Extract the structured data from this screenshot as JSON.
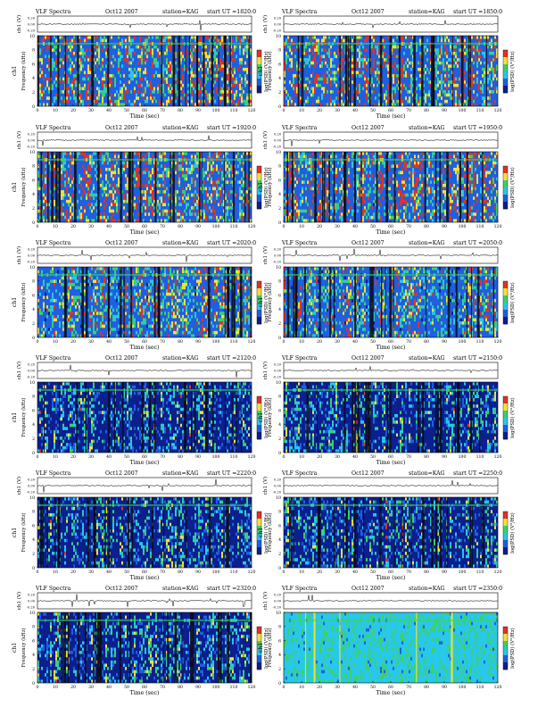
{
  "figure": {
    "common": {
      "plot_label": "VLF Spectra",
      "date": "Oct12 2007",
      "station_text": "station=KAG",
      "start_text": "start UT =",
      "amp_label": "ch1 (V)",
      "spec_channel_label": "ch1",
      "spec_ylabel": "Frequency (kHz)",
      "xlabel": "Time (sec)",
      "colorbar_label": "log(PSD) (V²/Hz)"
    },
    "colors": {
      "deep_blue": "#0b1f8f",
      "blue": "#1f5fe0",
      "cyan": "#28c8e8",
      "green": "#3ed06a",
      "yellow": "#f2e23a",
      "red": "#e23224",
      "sweep_dark": "#0a0a18"
    }
  },
  "chart_data": [
    {
      "type": "heatmap",
      "start_ut": "1820:0",
      "xlim": [
        0,
        120
      ],
      "ylim": [
        0,
        10
      ],
      "amp_ylim": [
        -0.2,
        0.2
      ],
      "xticks": [
        0,
        10,
        20,
        30,
        40,
        50,
        60,
        70,
        80,
        90,
        100,
        110,
        120
      ],
      "yticks": [
        0,
        2,
        4,
        6,
        8,
        10
      ],
      "amp_ticks": [
        "0.20",
        "0.00",
        "-0.20"
      ]
    },
    {
      "type": "heatmap",
      "start_ut": "1850:0",
      "xlim": [
        0,
        120
      ],
      "ylim": [
        0,
        10
      ],
      "amp_ylim": [
        -0.2,
        0.2
      ],
      "xticks": [
        0,
        10,
        20,
        30,
        40,
        50,
        60,
        70,
        80,
        90,
        100,
        110,
        120
      ],
      "yticks": [
        0,
        2,
        4,
        6,
        8,
        10
      ],
      "amp_ticks": [
        "0.20",
        "0.00",
        "-0.20"
      ]
    },
    {
      "type": "heatmap",
      "start_ut": "1920:0",
      "xlim": [
        0,
        120
      ],
      "ylim": [
        0,
        10
      ],
      "amp_ylim": [
        -0.2,
        0.2
      ],
      "xticks": [
        0,
        10,
        20,
        30,
        40,
        50,
        60,
        70,
        80,
        90,
        100,
        110,
        120
      ],
      "yticks": [
        0,
        2,
        4,
        6,
        8,
        10
      ],
      "amp_ticks": [
        "0.20",
        "0.00",
        "-0.20"
      ]
    },
    {
      "type": "heatmap",
      "start_ut": "1950:0",
      "xlim": [
        0,
        120
      ],
      "ylim": [
        0,
        10
      ],
      "amp_ylim": [
        -0.2,
        0.2
      ],
      "xticks": [
        0,
        10,
        20,
        30,
        40,
        50,
        60,
        70,
        80,
        90,
        100,
        110,
        120
      ],
      "yticks": [
        0,
        2,
        4,
        6,
        8,
        10
      ],
      "amp_ticks": [
        "0.20",
        "0.00",
        "-0.20"
      ]
    },
    {
      "type": "heatmap",
      "start_ut": "2020:0",
      "xlim": [
        0,
        120
      ],
      "ylim": [
        0,
        10
      ],
      "amp_ylim": [
        -0.2,
        0.2
      ],
      "xticks": [
        0,
        10,
        20,
        30,
        40,
        50,
        60,
        70,
        80,
        90,
        100,
        110,
        120
      ],
      "yticks": [
        0,
        2,
        4,
        6,
        8,
        10
      ],
      "amp_ticks": [
        "0.20",
        "0.00",
        "-0.20"
      ]
    },
    {
      "type": "heatmap",
      "start_ut": "2050:0",
      "xlim": [
        0,
        120
      ],
      "ylim": [
        0,
        10
      ],
      "amp_ylim": [
        -0.2,
        0.2
      ],
      "xticks": [
        0,
        10,
        20,
        30,
        40,
        50,
        60,
        70,
        80,
        90,
        100,
        110,
        120
      ],
      "yticks": [
        0,
        2,
        4,
        6,
        8,
        10
      ],
      "amp_ticks": [
        "0.20",
        "0.00",
        "-0.20"
      ]
    },
    {
      "type": "heatmap",
      "start_ut": "2120:0",
      "xlim": [
        0,
        120
      ],
      "ylim": [
        0,
        10
      ],
      "amp_ylim": [
        -0.2,
        0.2
      ],
      "xticks": [
        0,
        10,
        20,
        30,
        40,
        50,
        60,
        70,
        80,
        90,
        100,
        110,
        120
      ],
      "yticks": [
        0,
        2,
        4,
        6,
        8,
        10
      ],
      "amp_ticks": [
        "0.20",
        "0.00",
        "-0.20"
      ]
    },
    {
      "type": "heatmap",
      "start_ut": "2150:0",
      "xlim": [
        0,
        120
      ],
      "ylim": [
        0,
        10
      ],
      "amp_ylim": [
        -0.2,
        0.2
      ],
      "xticks": [
        0,
        10,
        20,
        30,
        40,
        50,
        60,
        70,
        80,
        90,
        100,
        110,
        120
      ],
      "yticks": [
        0,
        2,
        4,
        6,
        8,
        10
      ],
      "amp_ticks": [
        "0.20",
        "0.00",
        "-0.20"
      ]
    },
    {
      "type": "heatmap",
      "start_ut": "2220:0",
      "xlim": [
        0,
        120
      ],
      "ylim": [
        0,
        10
      ],
      "amp_ylim": [
        -0.2,
        0.2
      ],
      "xticks": [
        0,
        10,
        20,
        30,
        40,
        50,
        60,
        70,
        80,
        90,
        100,
        110,
        120
      ],
      "yticks": [
        0,
        2,
        4,
        6,
        8,
        10
      ],
      "amp_ticks": [
        "0.20",
        "0.00",
        "-0.20"
      ]
    },
    {
      "type": "heatmap",
      "start_ut": "2250:0",
      "xlim": [
        0,
        120
      ],
      "ylim": [
        0,
        10
      ],
      "amp_ylim": [
        -0.2,
        0.2
      ],
      "xticks": [
        0,
        10,
        20,
        30,
        40,
        50,
        60,
        70,
        80,
        90,
        100,
        110,
        120
      ],
      "yticks": [
        0,
        2,
        4,
        6,
        8,
        10
      ],
      "amp_ticks": [
        "0.20",
        "0.00",
        "-0.20"
      ]
    },
    {
      "type": "heatmap",
      "start_ut": "2320:0",
      "xlim": [
        0,
        120
      ],
      "ylim": [
        0,
        10
      ],
      "amp_ylim": [
        -0.2,
        0.2
      ],
      "xticks": [
        0,
        10,
        20,
        30,
        40,
        50,
        60,
        70,
        80,
        90,
        100,
        110,
        120
      ],
      "yticks": [
        0,
        2,
        4,
        6,
        8,
        10
      ],
      "amp_ticks": [
        "0.20",
        "0.00",
        "-0.20"
      ]
    },
    {
      "type": "heatmap",
      "start_ut": "2350:0",
      "xlim": [
        0,
        120
      ],
      "ylim": [
        0,
        10
      ],
      "amp_ylim": [
        -0.2,
        0.2
      ],
      "xticks": [
        0,
        10,
        20,
        30,
        40,
        50,
        60,
        70,
        80,
        90,
        100,
        110,
        120
      ],
      "yticks": [
        0,
        2,
        4,
        6,
        8,
        10
      ],
      "amp_ticks": [
        "0.20",
        "0.00",
        "-0.20"
      ]
    }
  ]
}
